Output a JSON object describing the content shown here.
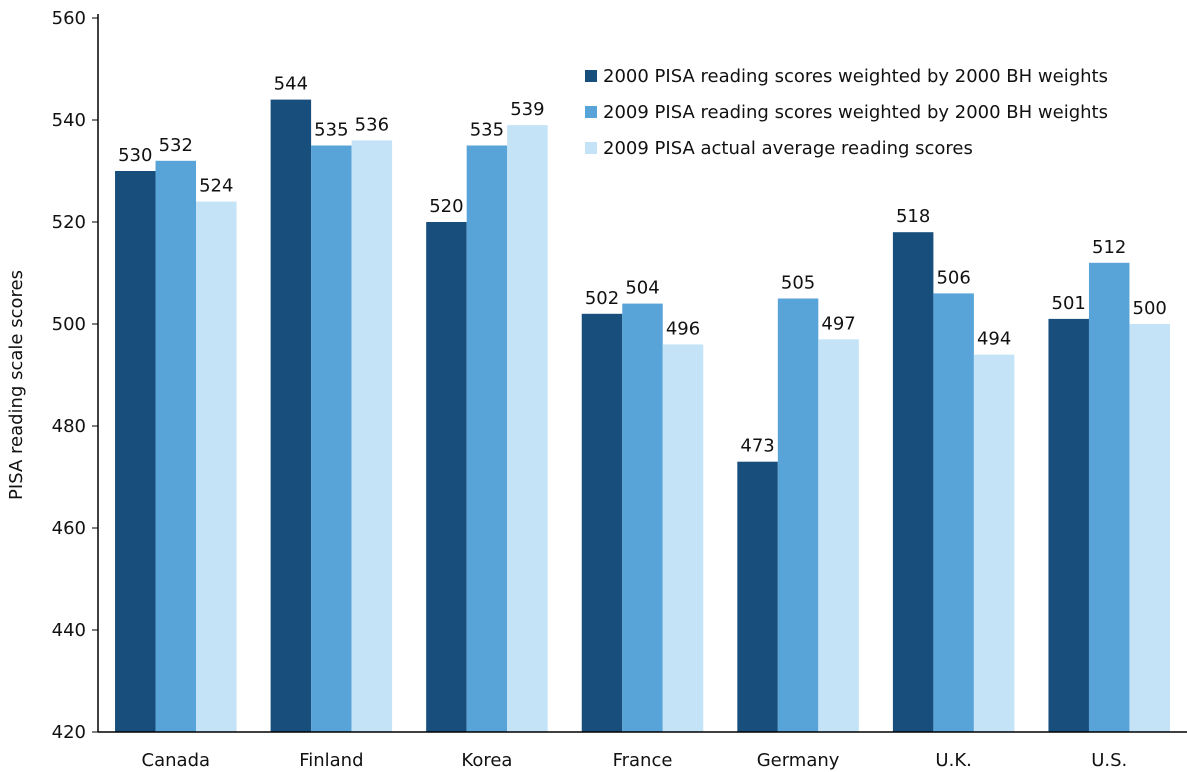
{
  "chart_data": {
    "type": "bar",
    "y_label": "PISA reading scale scores",
    "categories": [
      "Canada",
      "Finland",
      "Korea",
      "France",
      "Germany",
      "U.K.",
      "U.S."
    ],
    "series": [
      {
        "name": "2000 PISA reading scores weighted by 2000 BH weights",
        "color": "#174e7c",
        "values": [
          530,
          544,
          520,
          502,
          473,
          518,
          501
        ]
      },
      {
        "name": "2009 PISA reading scores weighted by 2000 BH weights",
        "color": "#58a3d8",
        "values": [
          532,
          535,
          535,
          504,
          505,
          506,
          512
        ]
      },
      {
        "name": "2009 PISA actual average reading scores",
        "color": "#c5e3f7",
        "values": [
          524,
          536,
          539,
          496,
          497,
          494,
          500
        ]
      }
    ],
    "ylim": [
      420,
      560
    ],
    "yticks": [
      420,
      440,
      460,
      480,
      500,
      520,
      540,
      560
    ],
    "grid": false,
    "legend": "upper right"
  }
}
